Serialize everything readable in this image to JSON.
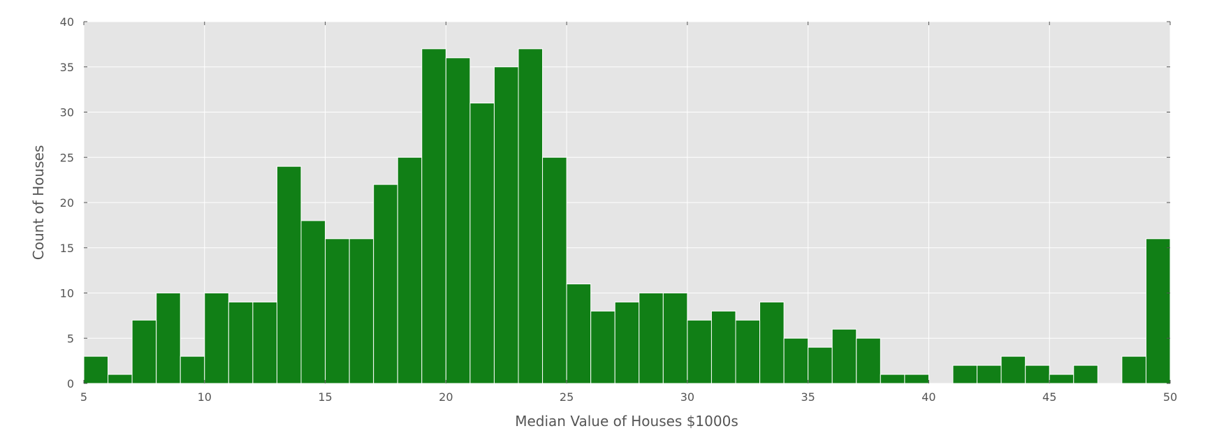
{
  "chart_data": {
    "type": "bar",
    "title": "",
    "xlabel": "Median Value of Houses $1000s",
    "ylabel": "Count of Houses",
    "xlim": [
      5,
      50
    ],
    "ylim": [
      0,
      40
    ],
    "x_ticks": [
      5,
      10,
      15,
      20,
      25,
      30,
      35,
      40,
      45,
      50
    ],
    "y_ticks": [
      0,
      5,
      10,
      15,
      20,
      25,
      30,
      35,
      40
    ],
    "grid": true,
    "bar_color": "#117f16",
    "background_color": "#e5e5e5",
    "grid_color": "#ffffff",
    "bin_edges_start": 5,
    "bin_width": 1,
    "values": [
      3,
      1,
      7,
      10,
      3,
      10,
      9,
      9,
      24,
      18,
      16,
      16,
      22,
      25,
      37,
      36,
      31,
      35,
      37,
      25,
      11,
      8,
      9,
      10,
      10,
      7,
      8,
      7,
      9,
      5,
      4,
      6,
      5,
      1,
      1,
      0,
      2,
      2,
      3,
      2,
      1,
      2,
      0,
      3,
      16
    ]
  }
}
